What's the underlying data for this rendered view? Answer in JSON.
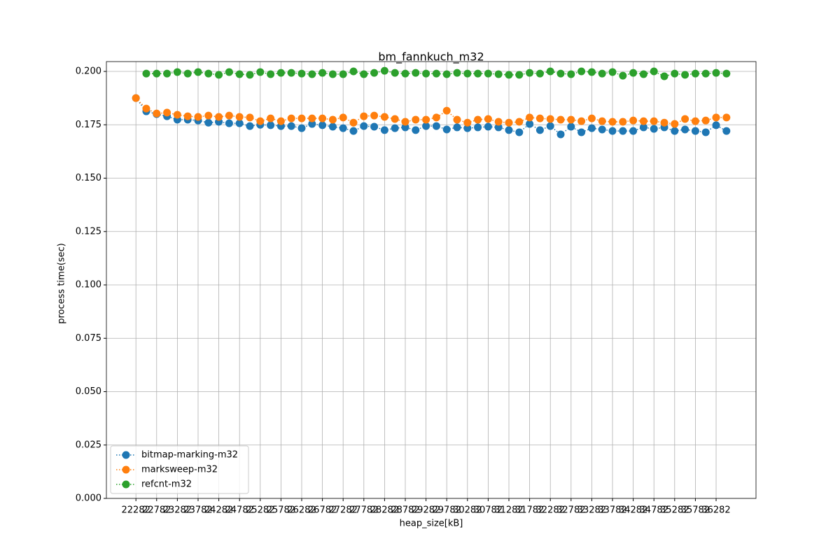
{
  "chart_data": {
    "type": "line",
    "title": "bm_fannkuch_m32",
    "x_label": "heap_size[kB]",
    "y_label": "process time(sec)",
    "x": [
      22282,
      22532,
      22782,
      23032,
      23282,
      23532,
      23782,
      24032,
      24282,
      24532,
      24782,
      25032,
      25282,
      25532,
      25782,
      26032,
      26282,
      26532,
      26782,
      27032,
      27282,
      27532,
      27782,
      28032,
      28282,
      28532,
      28782,
      29032,
      29282,
      29532,
      29782,
      30032,
      30282,
      30532,
      30782,
      31032,
      31282,
      31532,
      31782,
      32032,
      32282,
      32532,
      32782,
      33032,
      33282,
      33532,
      33782,
      34032,
      34282,
      34532,
      34782,
      35032,
      35282,
      35532,
      35782,
      36032,
      36282,
      36532
    ],
    "series": [
      {
        "name": "bitmap-marking-m32",
        "color": "#1f77b4",
        "values": [
          0.1875,
          0.1813,
          0.18,
          0.179,
          0.1774,
          0.1774,
          0.177,
          0.176,
          0.1764,
          0.1757,
          0.1757,
          0.1744,
          0.175,
          0.1748,
          0.1744,
          0.1744,
          0.1734,
          0.1754,
          0.1748,
          0.1741,
          0.1734,
          0.1721,
          0.1744,
          0.1741,
          0.1725,
          0.1734,
          0.1738,
          0.1725,
          0.1744,
          0.1744,
          0.1728,
          0.1738,
          0.1734,
          0.1738,
          0.1741,
          0.1738,
          0.1725,
          0.1715,
          0.1754,
          0.1725,
          0.1744,
          0.1705,
          0.1741,
          0.1715,
          0.1734,
          0.1728,
          0.1721,
          0.1721,
          0.1721,
          0.1738,
          0.1731,
          0.1738,
          0.1721,
          0.1728,
          0.1721,
          0.1715,
          0.1748,
          0.1721
        ]
      },
      {
        "name": "marksweep-m32",
        "color": "#ff7f0e",
        "values": [
          0.1875,
          0.1826,
          0.1803,
          0.1807,
          0.1797,
          0.179,
          0.1787,
          0.1793,
          0.1787,
          0.1793,
          0.1787,
          0.1784,
          0.1767,
          0.178,
          0.1767,
          0.178,
          0.178,
          0.178,
          0.178,
          0.1774,
          0.1784,
          0.176,
          0.179,
          0.1793,
          0.1787,
          0.1777,
          0.1764,
          0.1774,
          0.1774,
          0.1784,
          0.1816,
          0.1774,
          0.176,
          0.1774,
          0.1777,
          0.1764,
          0.176,
          0.1764,
          0.1784,
          0.178,
          0.1777,
          0.1774,
          0.1774,
          0.1767,
          0.178,
          0.1767,
          0.1764,
          0.1764,
          0.177,
          0.1767,
          0.1767,
          0.176,
          0.1754,
          0.1777,
          0.1767,
          0.177,
          0.1784,
          0.1784
        ]
      },
      {
        "name": "refcnt-m32",
        "color": "#2ca02c",
        "values": [
          null,
          0.199,
          0.199,
          0.199,
          0.1997,
          0.199,
          0.1997,
          0.199,
          0.1984,
          0.1997,
          0.1987,
          0.1984,
          0.1997,
          0.1987,
          0.1993,
          0.1993,
          0.199,
          0.1987,
          0.1993,
          0.1987,
          0.1987,
          0.2,
          0.1987,
          0.1993,
          0.2003,
          0.1993,
          0.199,
          0.1993,
          0.199,
          0.199,
          0.1987,
          0.1993,
          0.199,
          0.199,
          0.199,
          0.1987,
          0.1984,
          0.1984,
          0.1993,
          0.199,
          0.2,
          0.199,
          0.1987,
          0.2,
          0.1997,
          0.199,
          0.1997,
          0.198,
          0.1993,
          0.1987,
          0.2,
          0.1977,
          0.199,
          0.1984,
          0.199,
          0.199,
          0.1993,
          0.199
        ]
      }
    ],
    "xlim": [
      21569.5,
      37244.5
    ],
    "xticks": [
      22282,
      22782,
      23282,
      23782,
      24282,
      24782,
      25282,
      25782,
      26282,
      26782,
      27282,
      27782,
      28282,
      28782,
      29282,
      29782,
      30282,
      30782,
      31282,
      31782,
      32282,
      32782,
      33282,
      33782,
      34282,
      34782,
      35282,
      35782,
      36282
    ],
    "ylim": [
      0,
      0.2046
    ],
    "yticks": [
      {
        "value": 0,
        "label": "0.000"
      },
      {
        "value": 0.025,
        "label": "0.025"
      },
      {
        "value": 0.05,
        "label": "0.050"
      },
      {
        "value": 0.075,
        "label": "0.075"
      },
      {
        "value": 0.1,
        "label": "0.100"
      },
      {
        "value": 0.125,
        "label": "0.125"
      },
      {
        "value": 0.15,
        "label": "0.150"
      },
      {
        "value": 0.175,
        "label": "0.175"
      },
      {
        "value": 0.2,
        "label": "0.200"
      }
    ],
    "grid": true,
    "legend": "lower left",
    "marker": "circle",
    "line_style": "dotted"
  }
}
